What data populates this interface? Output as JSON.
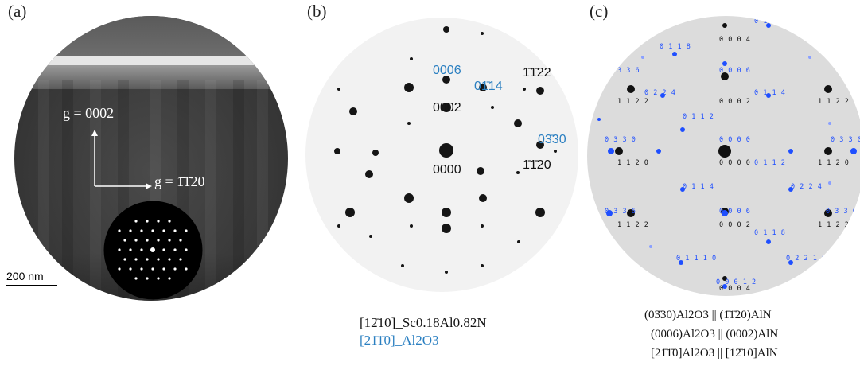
{
  "panel_a": {
    "label": "(a)",
    "g_up": "g = 0002",
    "g_right": "g = 1̄1̄20",
    "scale_bar": "200 nm"
  },
  "panel_b": {
    "label": "(b)",
    "spot_labels": {
      "b0006": "0006",
      "b0114": "01̄14",
      "b1122": "1̄1̄22",
      "b0002": "0002",
      "b0330": "03̄30",
      "b0000": "0000",
      "b1120": "1̄1̄20"
    },
    "caption_line1": "[12̄10]_Sc0.18Al0.82N",
    "caption_line2": "[21̄1̄0]_Al2O3"
  },
  "panel_c": {
    "label": "(c)",
    "labels": {
      "c0118top": "0 1 1 8",
      "c0004": "0 0 0 4",
      "c0336tl": "3 3 6",
      "c0006": "0 0 0 6",
      "c0224": "0 2 2 4",
      "c0114": "0 1 1 4",
      "c1122a": "1 1 2 2",
      "c0002": "0 0 0 2",
      "c1122b": "1 1 2 2",
      "c0112": "0 1 1 2",
      "c0330l": "0 3 3 0",
      "c0000": "0 0 0 0",
      "c0330r": "0 3 3 0",
      "c1120a": "1 1 2 0",
      "c0000k": "0 0 0 0",
      "c0112b": "0 1 1 2",
      "c1120b": "1 1 2 0",
      "c0114b": "0 1 1 4",
      "c0224b": "0 2 2 4",
      "c0336": "0 3 3 6",
      "c0006b": "0 0 0 6",
      "c0336b": "0 3 3 6",
      "c1122c": "1 1 2 2",
      "c0002b": "0 0 0 2",
      "c1122d": "1 1 2 2",
      "c0118b": "0 1 1 8",
      "c01110": "0 1 1 1 0",
      "c02210": "0 2 2 1 0",
      "c00012": "0 0 0 1 2",
      "c0004b": "0 0 0 4"
    },
    "caption_line1": "(03̄30)Al2O3 || (1̄1̄20)AlN",
    "caption_line2": "(0006)Al2O3 || (0002)AlN",
    "caption_line3": "[21̄1̄0]Al2O3 || [12̄10]AlN"
  },
  "colors": {
    "blue_label": "#2a7fc1",
    "sim_blue": "#1f4fff",
    "spot_black": "#111111"
  }
}
